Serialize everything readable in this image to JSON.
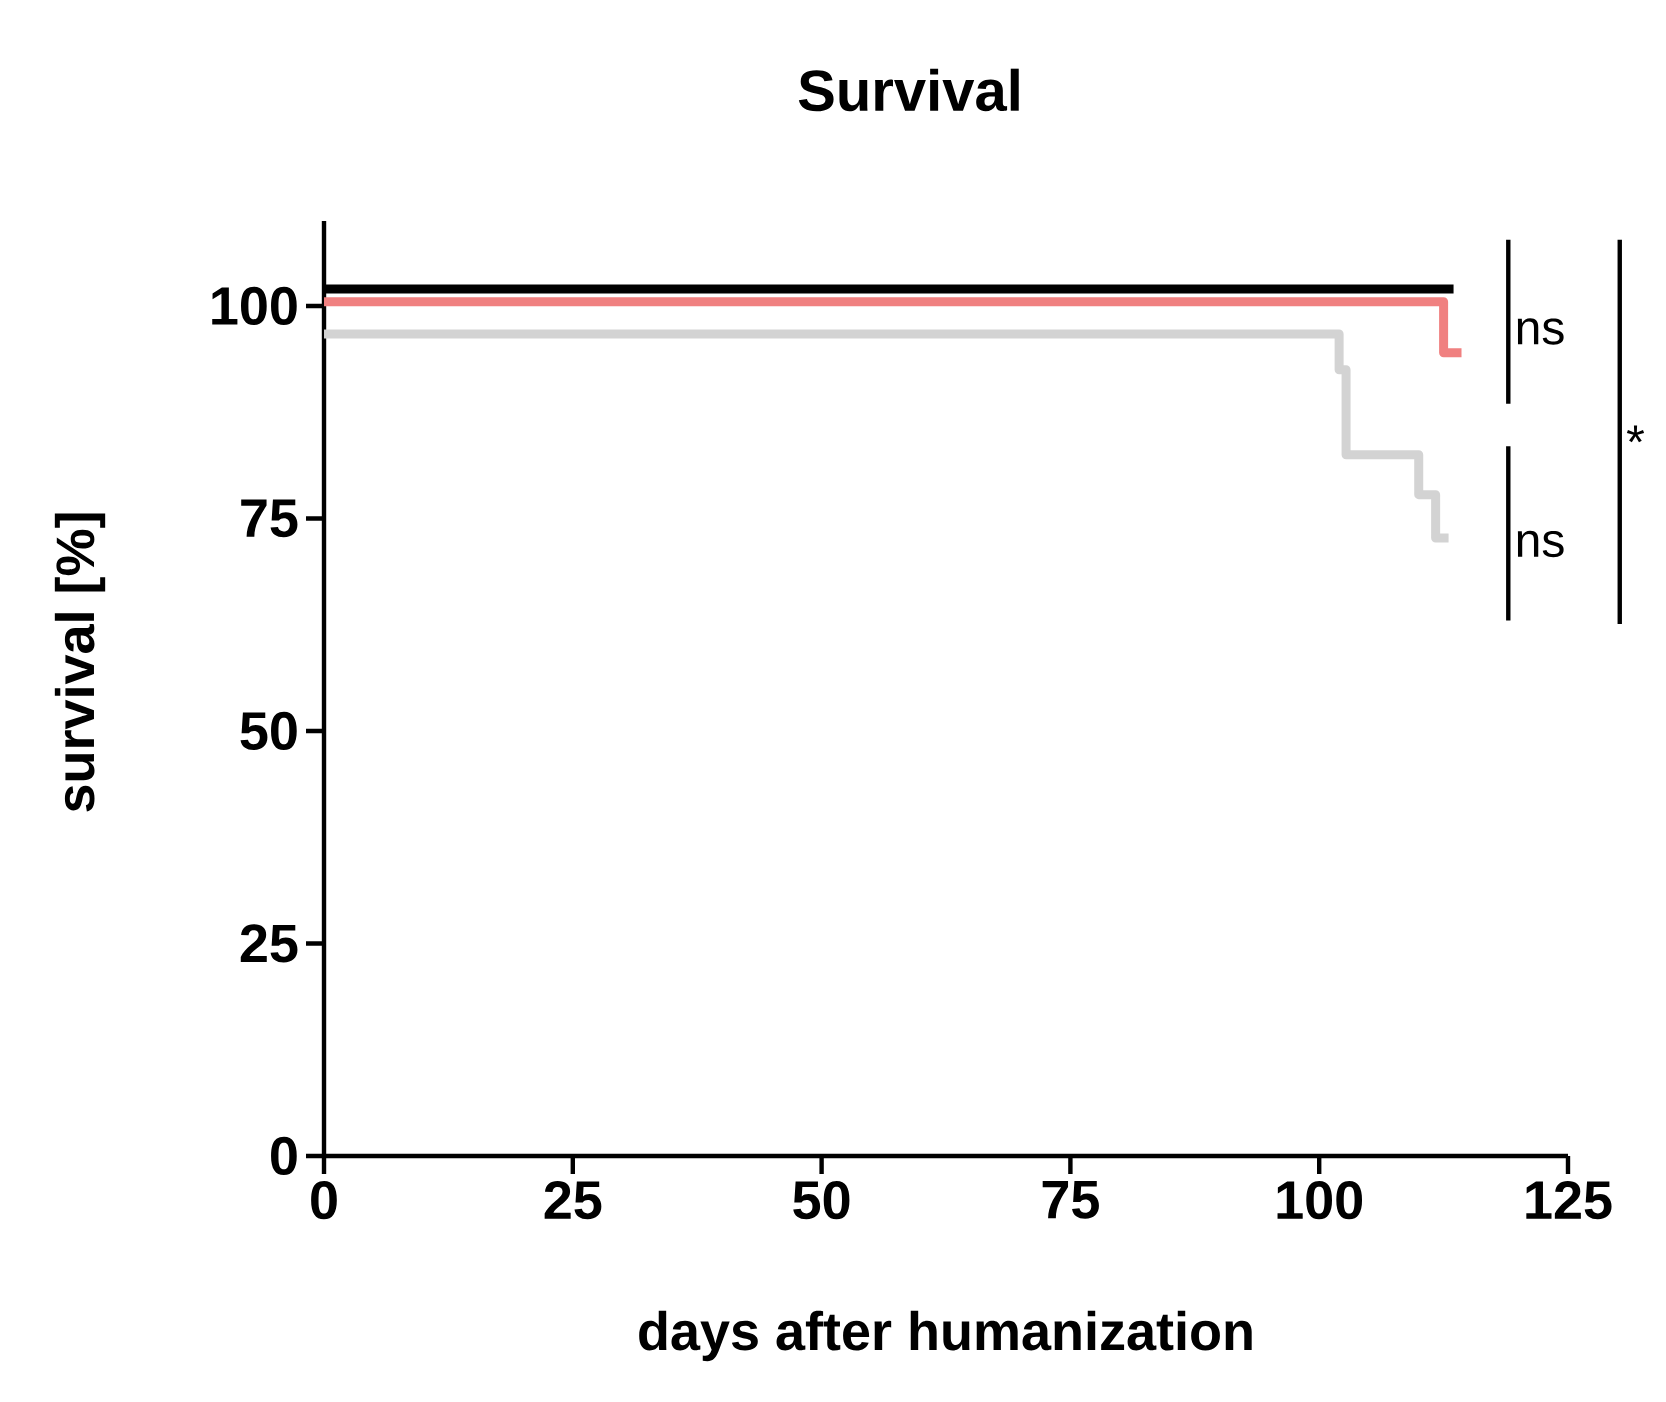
{
  "chart_data": {
    "type": "step",
    "title": "Survival",
    "xlabel": "days after humanization",
    "ylabel": "survival [%]",
    "xlim": [
      0,
      125
    ],
    "ylim": [
      0,
      110
    ],
    "xticks": [
      0,
      25,
      50,
      75,
      100,
      125
    ],
    "yticks": [
      0,
      25,
      50,
      75,
      100
    ],
    "series": [
      {
        "color": "#000000",
        "x": [
          0,
          113.5
        ],
        "values": [
          102,
          102
        ]
      },
      {
        "color": "#f08080",
        "x": [
          0,
          112.5,
          114.3
        ],
        "values": [
          100.5,
          94.5,
          94.5
        ]
      },
      {
        "color": "#d3d3d3",
        "x": [
          0,
          102,
          102.7,
          110,
          111.7,
          113
        ],
        "values": [
          96.7,
          92.5,
          82.5,
          77.8,
          72.7,
          72.7
        ]
      }
    ],
    "annotations": [
      "ns",
      "ns",
      "*"
    ]
  }
}
